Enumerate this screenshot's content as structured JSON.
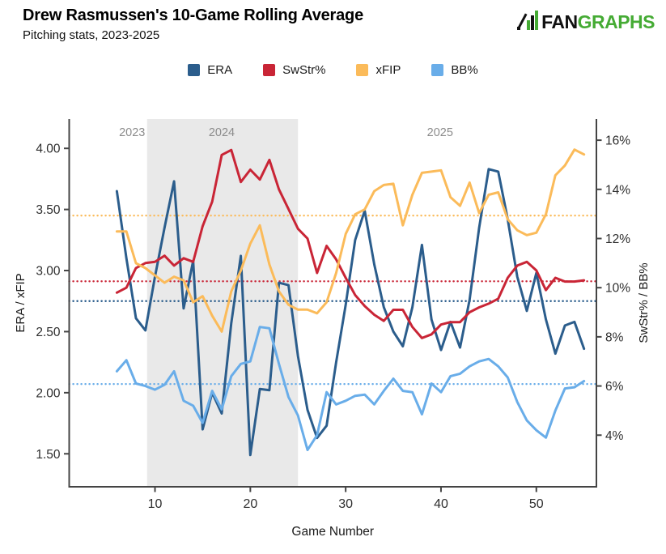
{
  "header": {
    "title": "Drew Rasmussen's 10-Game Rolling Average",
    "subtitle": "Pitching stats, 2023-2025",
    "logo_fan": "FAN",
    "logo_graphs": "GRAPHS"
  },
  "legend": [
    {
      "slug": "era",
      "label": "ERA"
    },
    {
      "slug": "swstr",
      "label": "SwStr%"
    },
    {
      "slug": "xfip",
      "label": "xFIP"
    },
    {
      "slug": "bb",
      "label": "BB%"
    }
  ],
  "chart_data": {
    "type": "line",
    "title": "Drew Rasmussen's 10-Game Rolling Average",
    "subtitle": "Pitching stats, 2023-2025",
    "xlabel": "Game Number",
    "ylabel_left": "ERA / xFIP",
    "ylabel_right": "SwStr% / BB%",
    "x_start_game": 6,
    "xlim": [
      1.0,
      56.3
    ],
    "ylim_left": [
      1.23,
      4.24
    ],
    "ylim_right": [
      1.9,
      16.86
    ],
    "grid": false,
    "legend_position": "top-center",
    "x_ticks": [
      "10",
      "20",
      "30",
      "40",
      "50"
    ],
    "x_tick_values": [
      10,
      20,
      30,
      40,
      50
    ],
    "y_left_ticks": [
      "4.00",
      "3.50",
      "3.00",
      "2.50",
      "2.00",
      "1.50"
    ],
    "y_left_tick_values": [
      4.0,
      3.5,
      3.0,
      2.5,
      2.0,
      1.5
    ],
    "y_right_ticks": [
      "16%",
      "14%",
      "12%",
      "10%",
      "8%",
      "6%",
      "4%"
    ],
    "y_right_tick_values": [
      16,
      14,
      12,
      10,
      8,
      6,
      4
    ],
    "season_labels": [
      {
        "label": "2023",
        "x_game": 7.6
      },
      {
        "label": "2024",
        "x_game": 17.0
      },
      {
        "label": "2025",
        "x_game": 39.9
      }
    ],
    "shaded_region": {
      "start_game": 9.17,
      "end_game": 25.0,
      "color": "#e9e9e9"
    },
    "colors": {
      "axis": "#444444",
      "tick_text": "#2e2e2e",
      "season_text": "#8c8c8c",
      "band": "#e9e9e9"
    },
    "series": [
      {
        "name": "ERA",
        "slug": "era",
        "axis": "left",
        "color": "#2b5d8c",
        "average": 2.75,
        "values": [
          3.65,
          3.1,
          2.61,
          2.51,
          2.95,
          3.35,
          3.73,
          2.69,
          3.08,
          1.7,
          2.0,
          1.83,
          2.57,
          3.12,
          1.49,
          2.03,
          2.02,
          2.9,
          2.88,
          2.3,
          1.86,
          1.63,
          1.73,
          2.25,
          2.72,
          3.25,
          3.49,
          3.05,
          2.7,
          2.5,
          2.38,
          2.7,
          3.21,
          2.6,
          2.35,
          2.58,
          2.37,
          2.76,
          3.35,
          3.83,
          3.81,
          3.42,
          2.95,
          2.67,
          2.98,
          2.6,
          2.32,
          2.55,
          2.58,
          2.36
        ]
      },
      {
        "name": "SwStr%",
        "slug": "swstr",
        "axis": "right",
        "color": "#c92536",
        "average": 10.26,
        "values": [
          9.8,
          10.0,
          10.8,
          11.0,
          11.05,
          11.3,
          10.9,
          11.2,
          11.05,
          12.5,
          13.5,
          15.4,
          15.6,
          14.3,
          14.8,
          14.4,
          15.2,
          14.0,
          13.2,
          12.4,
          12.0,
          10.6,
          11.7,
          11.15,
          10.4,
          9.7,
          9.25,
          8.9,
          8.65,
          9.1,
          9.1,
          8.4,
          7.95,
          8.1,
          8.5,
          8.6,
          8.6,
          9.0,
          9.2,
          9.35,
          9.55,
          10.4,
          10.9,
          11.05,
          10.7,
          9.9,
          10.4,
          10.25,
          10.25,
          10.3
        ]
      },
      {
        "name": "xFIP",
        "slug": "xfip",
        "axis": "left",
        "color": "#fbbb5a",
        "average": 3.45,
        "values": [
          3.32,
          3.32,
          3.06,
          3.02,
          2.96,
          2.9,
          2.95,
          2.92,
          2.74,
          2.79,
          2.63,
          2.5,
          2.83,
          3.0,
          3.22,
          3.37,
          3.05,
          2.83,
          2.72,
          2.68,
          2.68,
          2.65,
          2.74,
          2.98,
          3.3,
          3.46,
          3.5,
          3.65,
          3.7,
          3.71,
          3.37,
          3.62,
          3.8,
          3.81,
          3.82,
          3.6,
          3.53,
          3.72,
          3.47,
          3.62,
          3.64,
          3.42,
          3.33,
          3.29,
          3.31,
          3.46,
          3.78,
          3.86,
          3.99,
          3.95
        ]
      },
      {
        "name": "BB%",
        "slug": "bb",
        "axis": "right",
        "color": "#69ade9",
        "average": 6.08,
        "values": [
          6.6,
          7.05,
          6.1,
          6.0,
          5.85,
          6.05,
          6.6,
          5.4,
          5.2,
          4.5,
          5.8,
          5.05,
          6.4,
          6.9,
          7.0,
          8.4,
          8.35,
          6.9,
          5.55,
          4.8,
          3.4,
          4.0,
          5.75,
          5.25,
          5.4,
          5.6,
          5.65,
          5.25,
          5.8,
          6.3,
          5.8,
          5.75,
          4.85,
          6.1,
          5.75,
          6.4,
          6.5,
          6.8,
          7.0,
          7.1,
          6.8,
          6.35,
          5.35,
          4.6,
          4.2,
          3.9,
          5.0,
          5.9,
          5.95,
          6.2
        ]
      }
    ]
  }
}
